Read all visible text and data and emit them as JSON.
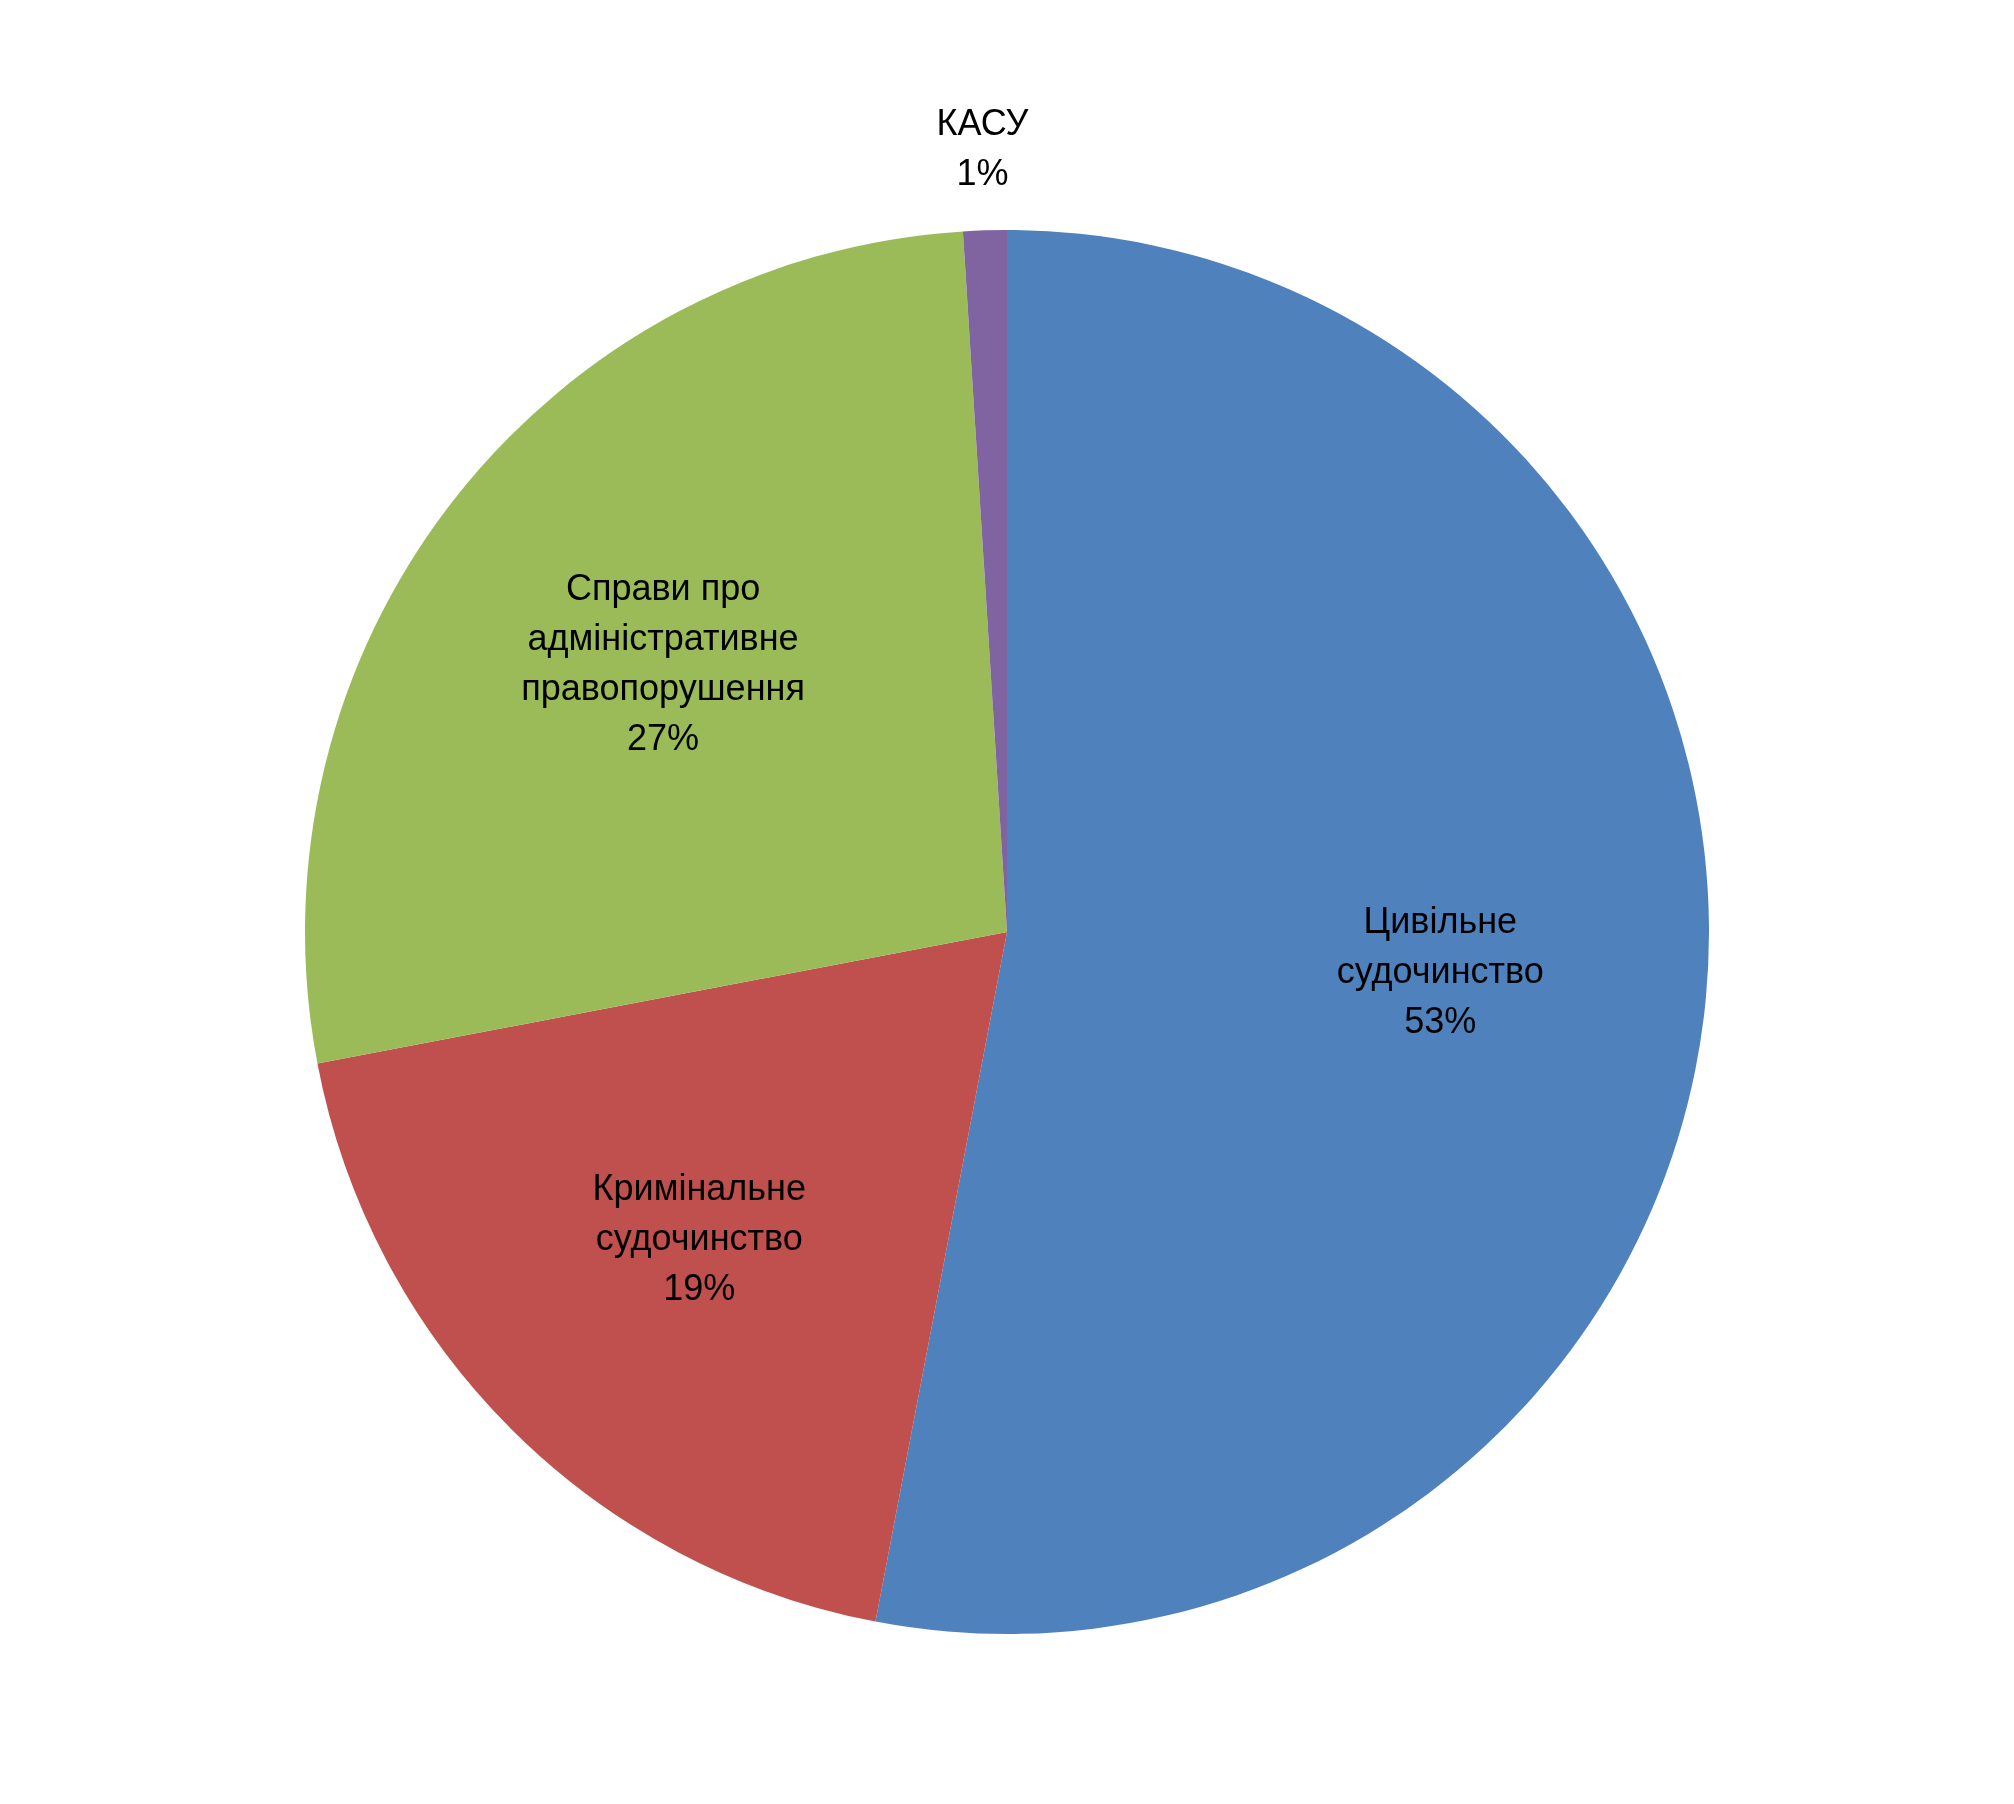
{
  "chart_data": {
    "type": "pie",
    "categories": [
      "Цивільне судочинство",
      "Кримінальне судочинство",
      "Справи про адміністративне правопорушення",
      "КАСУ"
    ],
    "values": [
      53,
      19,
      27,
      1
    ],
    "colors": [
      "#4f81bd",
      "#c0504d",
      "#9bbb59",
      "#8064a2"
    ],
    "value_labels": [
      "53%",
      "19%",
      "27%",
      "1%"
    ]
  }
}
